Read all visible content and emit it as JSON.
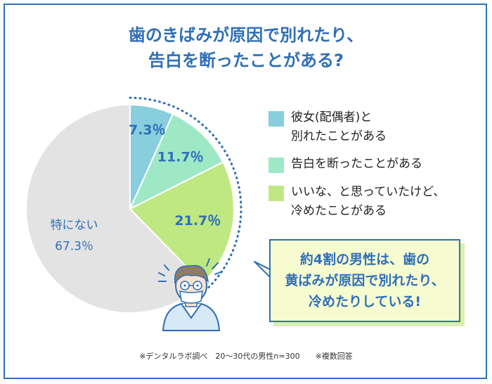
{
  "title": {
    "line1": "歯のきばみが原因で別れたり、",
    "line2": "告白を断ったことがある?"
  },
  "chart_data": {
    "type": "pie",
    "slices": [
      {
        "label_lines": [
          "彼女(配偶者)と",
          "別れたことがある"
        ],
        "value": 7.3,
        "value_text": "7.3％",
        "color": "#88cedd"
      },
      {
        "label_lines": [
          "告白を断ったことがある"
        ],
        "value": 11.7,
        "value_text": "11.7％",
        "color": "#9ee8c6"
      },
      {
        "label_lines": [
          "いいな、と思っていたけど、",
          "冷めたことがある"
        ],
        "value": 21.7,
        "value_text": "21.7％",
        "color": "#bfe882"
      },
      {
        "label_lines": [
          "特にない"
        ],
        "value": 67.3,
        "value_text": "67.3％",
        "color": "#e3e3e3"
      }
    ]
  },
  "callout": {
    "line1": "約4割の男性は、歯の",
    "line2": "黄ばみが原因で別れたり、",
    "line3": "冷めたりしている!"
  },
  "footnote": "※デンタルラボ調べ　20〜30代の男性n=300　　※複数回答",
  "colors": {
    "accent": "#2f6fb8",
    "label_text": "#2f6fb8"
  },
  "icons": {
    "character": "worried-man-with-mask-icon"
  }
}
